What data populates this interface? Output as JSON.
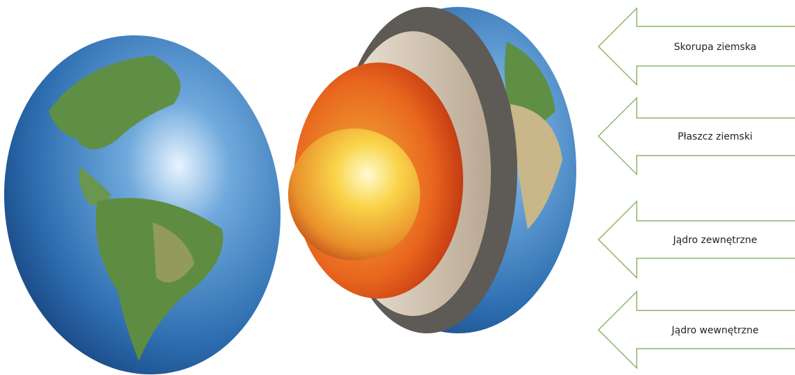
{
  "labels": [
    "Skorupa ziemska",
    "Płaszcz ziemski",
    "Jądro zewnętrzne",
    "Jądro wewnętrzne"
  ]
}
